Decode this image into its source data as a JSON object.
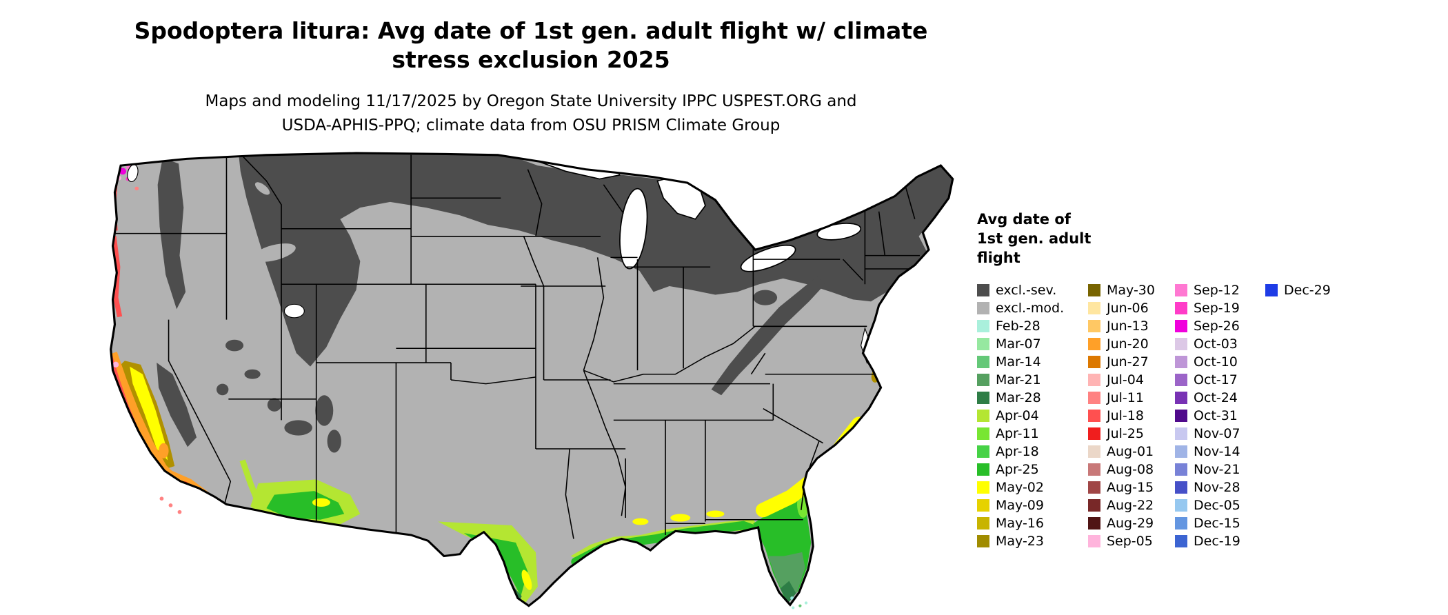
{
  "header": {
    "title_lines": [
      "Spodoptera litura: Avg date of 1st gen. adult flight w/ climate",
      "stress exclusion 2025"
    ],
    "subtitle_lines": [
      "Maps and modeling 11/17/2025 by Oregon State University IPPC USPEST.ORG and",
      "USDA-APHIS-PPQ; climate data from OSU PRISM Climate Group"
    ]
  },
  "legend": {
    "title_lines": [
      "Avg date of",
      "1st gen. adult",
      "flight"
    ],
    "columns": [
      {
        "entries": [
          {
            "label": "excl.-sev.",
            "color": "#4d4d4d"
          },
          {
            "label": "excl.-mod.",
            "color": "#b2b2b2"
          },
          {
            "label": "Feb-28",
            "color": "#aaf0dc"
          },
          {
            "label": "Mar-07",
            "color": "#96e8a0"
          },
          {
            "label": "Mar-14",
            "color": "#64c878"
          },
          {
            "label": "Mar-21",
            "color": "#55a060"
          },
          {
            "label": "Mar-28",
            "color": "#2e7d46"
          },
          {
            "label": "Apr-04",
            "color": "#b4e632"
          },
          {
            "label": "Apr-11",
            "color": "#78e632"
          },
          {
            "label": "Apr-18",
            "color": "#46d246"
          },
          {
            "label": "Apr-25",
            "color": "#28be28"
          },
          {
            "label": "May-02",
            "color": "#ffff00"
          },
          {
            "label": "May-09",
            "color": "#e6d200"
          },
          {
            "label": "May-16",
            "color": "#c8b400"
          },
          {
            "label": "May-23",
            "color": "#a08c00"
          }
        ]
      },
      {
        "entries": [
          {
            "label": "May-30",
            "color": "#786400"
          },
          {
            "label": "Jun-06",
            "color": "#ffe6a0"
          },
          {
            "label": "Jun-13",
            "color": "#ffc864"
          },
          {
            "label": "Jun-20",
            "color": "#ffa028"
          },
          {
            "label": "Jun-27",
            "color": "#dc7800"
          },
          {
            "label": "Jul-04",
            "color": "#ffb4b4"
          },
          {
            "label": "Jul-11",
            "color": "#ff8282"
          },
          {
            "label": "Jul-18",
            "color": "#ff5050"
          },
          {
            "label": "Jul-25",
            "color": "#f01e1e"
          },
          {
            "label": "Aug-01",
            "color": "#ebd7c8"
          },
          {
            "label": "Aug-08",
            "color": "#c87878"
          },
          {
            "label": "Aug-15",
            "color": "#a04646"
          },
          {
            "label": "Aug-22",
            "color": "#782828"
          },
          {
            "label": "Aug-29",
            "color": "#501414"
          },
          {
            "label": "Sep-05",
            "color": "#ffb4dc"
          }
        ]
      },
      {
        "entries": [
          {
            "label": "Sep-12",
            "color": "#ff78d2"
          },
          {
            "label": "Sep-19",
            "color": "#ff3cc8"
          },
          {
            "label": "Sep-26",
            "color": "#f000dc"
          },
          {
            "label": "Oct-03",
            "color": "#dcc8e6"
          },
          {
            "label": "Oct-10",
            "color": "#be96d7"
          },
          {
            "label": "Oct-17",
            "color": "#9b64c8"
          },
          {
            "label": "Oct-24",
            "color": "#7832b4"
          },
          {
            "label": "Oct-31",
            "color": "#500a8c"
          },
          {
            "label": "Nov-07",
            "color": "#c8c8f0"
          },
          {
            "label": "Nov-14",
            "color": "#a0b4e6"
          },
          {
            "label": "Nov-21",
            "color": "#7882d7"
          },
          {
            "label": "Nov-28",
            "color": "#4650c8"
          },
          {
            "label": "Dec-05",
            "color": "#96c8f0"
          },
          {
            "label": "Dec-15",
            "color": "#6496e1"
          },
          {
            "label": "Dec-19",
            "color": "#3c64d2"
          }
        ]
      },
      {
        "entries": [
          {
            "label": "Dec-29",
            "color": "#1e3ce6"
          }
        ]
      }
    ]
  },
  "map": {
    "colors": {
      "excluded_severe": "#4d4d4d",
      "excluded_moderate": "#b2b2b2",
      "water": "#ffffff",
      "border": "#000000"
    }
  }
}
